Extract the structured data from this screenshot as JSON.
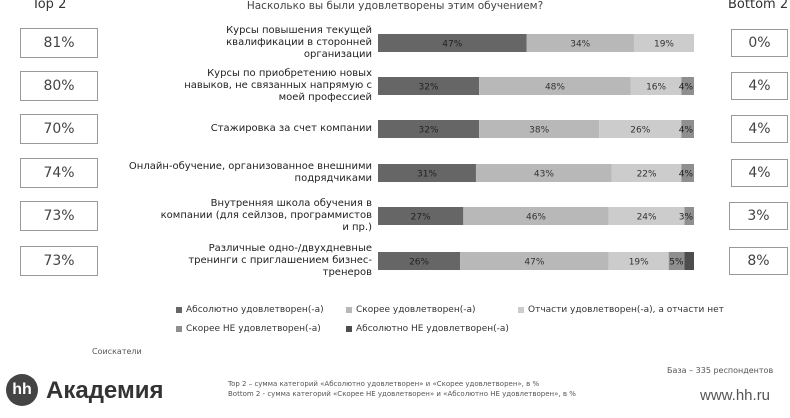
{
  "header": {
    "top2": "Top 2",
    "title": "Насколько вы были удовлетворены этим обучением?",
    "bottom2": "Bottom 2"
  },
  "top2_values": [
    "81%",
    "80%",
    "70%",
    "74%",
    "73%",
    "73%"
  ],
  "bottom2_values": [
    "0%",
    "4%",
    "4%",
    "4%",
    "3%",
    "8%"
  ],
  "row_labels": [
    "Курсы повышения текущей квалификации в сторонней организации",
    "Курсы по приобретению новых навыков, не связанных напрямую с моей профессией",
    "Стажировка за счет компании",
    "Онлайн-обучение, организованное внешними подрядчиками",
    "Внутренняя школа обучения в компании (для сейлзов, программистов и пр.)",
    "Различные одно-/двухдневные тренинги с приглашением бизнес-тренеров"
  ],
  "colors": [
    "#666666",
    "#b8b8b8",
    "#cccccc",
    "#8f8f8f",
    "#4d4d4d"
  ],
  "chart_data": {
    "type": "bar",
    "orientation": "horizontal-stacked-100",
    "title": "Насколько вы были удовлетворены этим обучением?",
    "categories": [
      "Курсы повышения текущей квалификации в сторонней организации",
      "Курсы по приобретению новых навыков, не связанных напрямую с моей профессией",
      "Стажировка за счет компании",
      "Онлайн-обучение, организованное внешними подрядчиками",
      "Внутренняя школа обучения в компании (для сейлзов, программистов и пр.)",
      "Различные одно-/двухдневные тренинги с приглашением бизнес-тренеров"
    ],
    "series": [
      {
        "name": "Абсолютно удовлетворен(-а)",
        "values": [
          47,
          32,
          32,
          31,
          27,
          26
        ]
      },
      {
        "name": "Скорее удовлетворен(-а)",
        "values": [
          34,
          48,
          38,
          43,
          46,
          47
        ]
      },
      {
        "name": "Отчасти удовлетворен(-а), а отчасти нет",
        "values": [
          19,
          16,
          26,
          22,
          24,
          19
        ]
      },
      {
        "name": "Скорее НЕ удовлетворен(-а)",
        "values": [
          0,
          4,
          4,
          4,
          3,
          5
        ]
      },
      {
        "name": "Абсолютно НЕ удовлетворен(-а)",
        "values": [
          0,
          0,
          0,
          0,
          0,
          3
        ]
      }
    ],
    "data_labels": [
      [
        "47%",
        "34%",
        "19%",
        "",
        ""
      ],
      [
        "32%",
        "48%",
        "16%",
        "4%",
        ""
      ],
      [
        "32%",
        "38%",
        "26%",
        "4%",
        ""
      ],
      [
        "31%",
        "43%",
        "22%",
        "4%",
        ""
      ],
      [
        "27%",
        "46%",
        "24%",
        "3%",
        ""
      ],
      [
        "26%",
        "47%",
        "19%",
        "5%",
        ""
      ]
    ],
    "legend_position": "bottom",
    "grid": false
  },
  "footer": {
    "segment": "Соискатели",
    "base": "База – 335 респондентов",
    "note1": "Top 2 – сумма категорий «Абсолютно удовлетворен» и «Скорее удовлетворен», в %",
    "note2": "Bottom 2 - сумма категорий «Скорее НЕ удовлетворен» и «Абсолютно НЕ удовлетворен», в %",
    "logo_mark": "hh",
    "logo_text": "Академия",
    "url": "www.hh.ru"
  }
}
